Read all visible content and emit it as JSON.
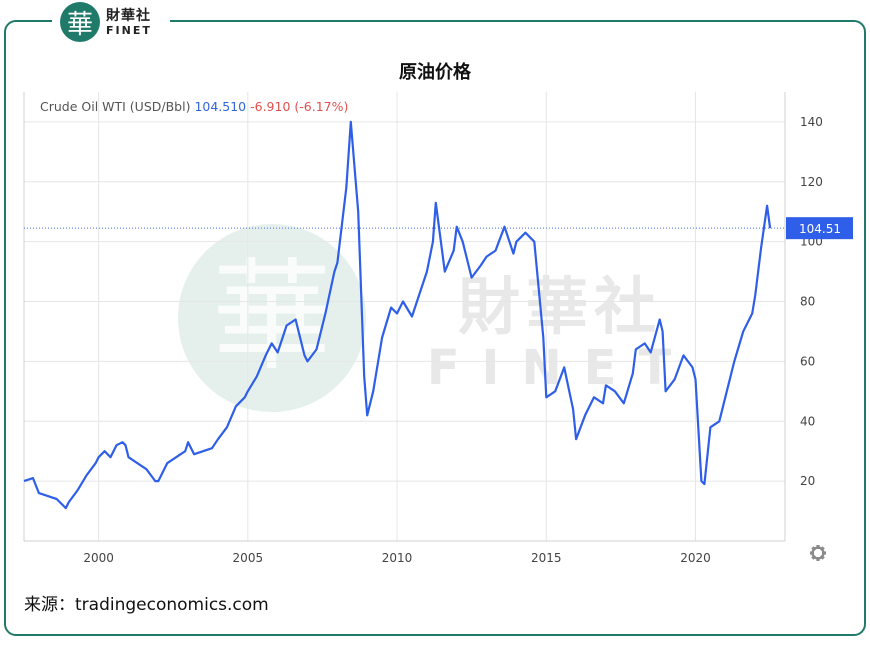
{
  "brand": {
    "logo_glyph": "華",
    "name_cn": "財華社",
    "name_en": "FINET",
    "color": "#1f7a6a"
  },
  "page_title": "原油价格",
  "source_text": "来源：tradingeconomics.com",
  "watermark": {
    "glyph": "華",
    "name_cn": "財華社",
    "name_en": "FINET"
  },
  "settings_icon": "gear-icon",
  "chart_data": {
    "type": "line",
    "legend": {
      "name": "Crude Oil WTI (USD/Bbl)",
      "value": "104.510",
      "change": "-6.910 (-6.17%)",
      "value_color": "#3366dd",
      "change_color": "#e05050"
    },
    "current_value_label": "104.51",
    "current_value": 104.51,
    "line_color": "#2f5fe8",
    "y_ticks": [
      20,
      40,
      60,
      80,
      100,
      120,
      140
    ],
    "y_tick_labels": [
      "20",
      "40",
      "60",
      "80",
      "100",
      "120",
      "140"
    ],
    "x_ticks": [
      2000,
      2005,
      2010,
      2015,
      2020
    ],
    "x_tick_labels": [
      "2000",
      "2005",
      "2010",
      "2015",
      "2020"
    ],
    "ylim": [
      0,
      150
    ],
    "xlim": [
      1997.5,
      2023.0
    ],
    "grid": true,
    "series": [
      {
        "x": [
          1997.5,
          1997.8,
          1998.0,
          1998.3,
          1998.6,
          1998.9,
          1999.0,
          1999.3,
          1999.6,
          1999.9,
          2000.0,
          2000.2,
          2000.4,
          2000.6,
          2000.8,
          2000.9,
          2001.0,
          2001.3,
          2001.6,
          2001.9,
          2002.0,
          2002.3,
          2002.6,
          2002.9,
          2003.0,
          2003.2,
          2003.5,
          2003.8,
          2004.0,
          2004.3,
          2004.6,
          2004.9,
          2005.0,
          2005.3,
          2005.6,
          2005.8,
          2006.0,
          2006.3,
          2006.6,
          2006.9,
          2007.0,
          2007.3,
          2007.6,
          2007.9,
          2008.0,
          2008.3,
          2008.45,
          2008.7,
          2008.9,
          2009.0,
          2009.2,
          2009.5,
          2009.8,
          2010.0,
          2010.2,
          2010.5,
          2010.8,
          2011.0,
          2011.2,
          2011.3,
          2011.6,
          2011.9,
          2012.0,
          2012.2,
          2012.5,
          2012.8,
          2013.0,
          2013.3,
          2013.6,
          2013.9,
          2014.0,
          2014.3,
          2014.6,
          2014.9,
          2015.0,
          2015.3,
          2015.6,
          2015.9,
          2016.0,
          2016.3,
          2016.6,
          2016.9,
          2017.0,
          2017.3,
          2017.6,
          2017.9,
          2018.0,
          2018.3,
          2018.5,
          2018.8,
          2018.9,
          2019.0,
          2019.3,
          2019.6,
          2019.9,
          2020.0,
          2020.2,
          2020.3,
          2020.5,
          2020.8,
          2021.0,
          2021.3,
          2021.6,
          2021.9,
          2022.0,
          2022.2,
          2022.4,
          2022.5
        ],
        "y": [
          20,
          21,
          16,
          15,
          14,
          11,
          13,
          17,
          22,
          26,
          28,
          30,
          28,
          32,
          33,
          32,
          28,
          26,
          24,
          20,
          20,
          26,
          28,
          30,
          33,
          29,
          30,
          31,
          34,
          38,
          45,
          48,
          50,
          55,
          62,
          66,
          63,
          72,
          74,
          62,
          60,
          64,
          76,
          90,
          93,
          118,
          140,
          110,
          55,
          42,
          50,
          68,
          78,
          76,
          80,
          75,
          84,
          90,
          100,
          113,
          90,
          97,
          105,
          100,
          88,
          92,
          95,
          97,
          105,
          96,
          100,
          103,
          100,
          68,
          48,
          50,
          58,
          44,
          34,
          42,
          48,
          46,
          52,
          50,
          46,
          56,
          64,
          66,
          63,
          74,
          70,
          50,
          54,
          62,
          58,
          54,
          20,
          19,
          38,
          40,
          48,
          60,
          70,
          76,
          82,
          98,
          112,
          104.51
        ]
      }
    ]
  }
}
